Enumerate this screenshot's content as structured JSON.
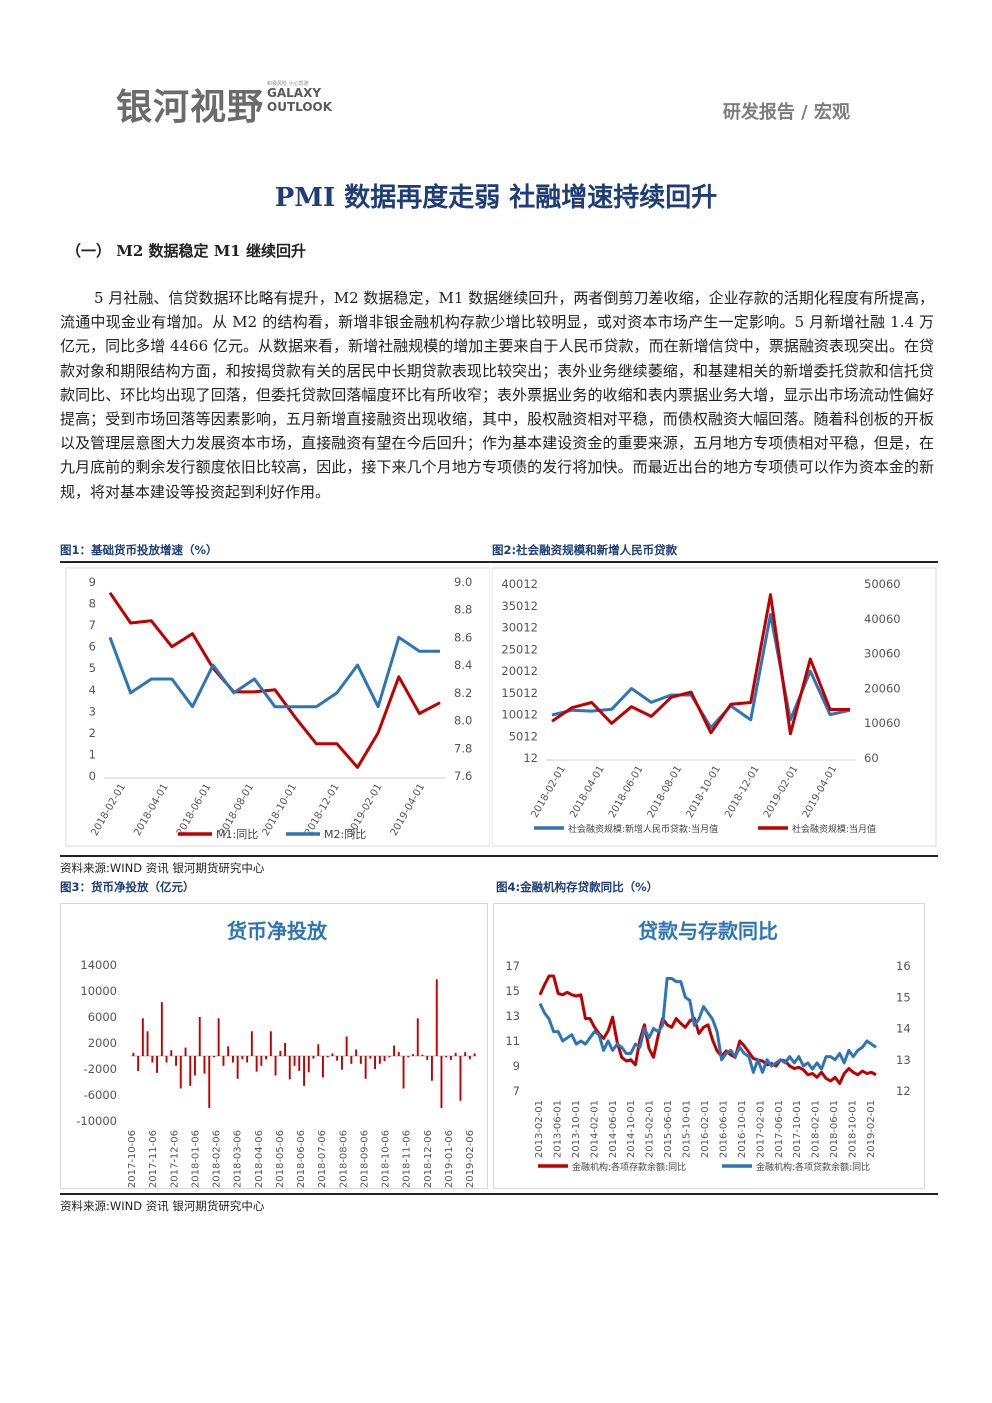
{
  "header": {
    "logo_cn": "银河视野",
    "logo_en_1": "GALAXY",
    "logo_en_2": "OUTLOOK",
    "logo_tag": "积极风险  小心驾驶",
    "category": "研发报告 / 宏观"
  },
  "title": "PMI 数据再度走弱 社融增速持续回升",
  "section_heading": "（一） M2 数据稳定 M1 继续回升",
  "paragraph": "5 月社融、信贷数据环比略有提升，M2 数据稳定，M1 数据继续回升，两者倒剪刀差收缩，企业存款的活期化程度有所提高，流通中现金业有增加。从 M2 的结构看，新增非银金融机构存款少增比较明显，或对资本市场产生一定影响。5 月新增社融 1.4 万亿元，同比多增 4466 亿元。从数据来看，新增社融规模的增加主要来自于人民币贷款，而在新增信贷中，票据融资表现突出。在贷款对象和期限结构方面，和按揭贷款有关的居民中长期贷款表现比较突出；表外业务继续萎缩，和基建相关的新增委托贷款和信托贷款同比、环比均出现了回落，但委托贷款回落幅度环比有所收窄；表外票据业务的收缩和表内票据业务大增，显示出市场流动性偏好提高；受到市场回落等因素影响，五月新增直接融资出现收缩，其中，股权融资相对平稳，而债权融资大幅回落。随着科创板的开板以及管理层意图大力发展资本市场，直接融资有望在今后回升；作为基本建设资金的重要来源，五月地方专项债相对平稳，但是，在九月底前的剩余发行额度依旧比较高，因此，接下来几个月地方专项债的发行将加快。而最近出台的地方专项债可以作为资本金的新规，将对基本建设等投资起到利好作用。",
  "fig1_caption": "图1：基础货币投放增速（%）",
  "fig2_caption": "图2:社会融资规模和新增人民币贷款",
  "fig3_caption": "图3：货币净投放（亿元）",
  "fig4_caption": "图4:金融机构存贷款同比（%）",
  "source1": "资料来源:WIND 资讯 银河期货研究中心",
  "source2": "资料来源:WIND 资讯 银河期货研究中心",
  "colors": {
    "red": "#c00000",
    "blue": "#2e75b6",
    "title_blue": "#1f3e78",
    "bar_red": "#c00000"
  },
  "chart_data": [
    {
      "type": "line",
      "title": "",
      "x": [
        "2018-01",
        "2018-02",
        "2018-03",
        "2018-04",
        "2018-05",
        "2018-06",
        "2018-07",
        "2018-08",
        "2018-09",
        "2018-10",
        "2018-11",
        "2018-12",
        "2019-01",
        "2019-02",
        "2019-03",
        "2019-04",
        "2019-05"
      ],
      "x_tick_labels": [
        "2018-02-01",
        "2018-04-01",
        "2018-06-01",
        "2018-08-01",
        "2018-10-01",
        "2018-12-01",
        "2019-02-01",
        "2019-04-01"
      ],
      "series": [
        {
          "name": "M1:同比",
          "axis": "left",
          "color": "#c00000",
          "values": [
            8.5,
            7.1,
            7.2,
            6.0,
            6.6,
            5.0,
            3.9,
            3.9,
            4.0,
            2.7,
            1.5,
            1.5,
            0.4,
            2.0,
            4.6,
            2.9,
            3.4
          ]
        },
        {
          "name": "M2:同比",
          "axis": "right",
          "color": "#2e75b6",
          "values": [
            8.6,
            8.2,
            8.3,
            8.3,
            8.1,
            8.4,
            8.2,
            8.3,
            8.1,
            8.1,
            8.1,
            8.2,
            8.4,
            8.1,
            8.6,
            8.5,
            8.5
          ]
        }
      ],
      "y_left": {
        "ticks": [
          "0",
          "1",
          "2",
          "3",
          "4",
          "5",
          "6",
          "7",
          "8",
          "9"
        ],
        "range": [
          0,
          9
        ]
      },
      "y_right": {
        "ticks": [
          "7.6",
          "7.8",
          "8.0",
          "8.2",
          "8.4",
          "8.6",
          "8.8",
          "9.0"
        ],
        "range": [
          7.6,
          9.0
        ]
      },
      "legend": "bottom"
    },
    {
      "type": "line",
      "title": "",
      "x_tick_labels": [
        "2018-02-01",
        "2018-04-01",
        "2018-06-01",
        "2018-08-01",
        "2018-10-01",
        "2018-12-01",
        "2019-02-01",
        "2019-04-01"
      ],
      "series": [
        {
          "name": "社会融资规模:新增人民币贷款:当月值",
          "axis": "left",
          "color": "#2e75b6",
          "values": [
            9900,
            11000,
            10800,
            11200,
            16000,
            12800,
            14500,
            14500,
            7000,
            12000,
            8800,
            33000,
            8800,
            20000,
            10000,
            11000
          ]
        },
        {
          "name": "社会融资规模:当月值",
          "axis": "right",
          "color": "#c00000",
          "values": [
            10600,
            14500,
            16000,
            10000,
            14800,
            12000,
            17500,
            19000,
            7300,
            15500,
            16000,
            47000,
            7000,
            28500,
            14000,
            14000
          ]
        }
      ],
      "y_left": {
        "ticks": [
          "12",
          "5012",
          "10012",
          "15012",
          "20012",
          "25012",
          "30012",
          "35012",
          "40012"
        ],
        "range": [
          12,
          40012
        ]
      },
      "y_right": {
        "ticks": [
          "60",
          "10060",
          "20060",
          "30060",
          "40060",
          "50060"
        ],
        "range": [
          60,
          50060
        ]
      },
      "legend": "bottom"
    },
    {
      "type": "bar",
      "title": "货币净投放",
      "x_tick_labels": [
        "2017-10-06",
        "2017-11-06",
        "2017-12-06",
        "2018-01-06",
        "2018-02-06",
        "2018-03-06",
        "2018-04-06",
        "2018-05-06",
        "2018-06-06",
        "2018-07-06",
        "2018-08-06",
        "2018-09-06",
        "2018-10-06",
        "2018-11-06",
        "2018-12-06",
        "2019-01-06",
        "2019-02-06"
      ],
      "values": [
        500,
        -2300,
        5800,
        3800,
        -1000,
        -2600,
        8300,
        -1000,
        900,
        -1500,
        -5000,
        1300,
        -4600,
        -3000,
        6000,
        -2700,
        -8000,
        -200,
        5800,
        -1500,
        1500,
        -1000,
        -3500,
        -500,
        -1000,
        3800,
        -2400,
        -1500,
        -500,
        3800,
        -3000,
        800,
        2000,
        -3600,
        -1500,
        -2300,
        -4600,
        -2500,
        -400,
        1800,
        -3300,
        -200,
        400,
        -700,
        -2100,
        3000,
        -1200,
        1000,
        -1200,
        -3500,
        -400,
        -2000,
        -1200,
        -800,
        -200,
        1600,
        600,
        -5000,
        -200,
        300,
        5800,
        200,
        -600,
        -3800,
        11800,
        -8000,
        -200,
        -600,
        500,
        -6900,
        600,
        -500,
        400
      ],
      "y_ticks": [
        "-10000",
        "-6000",
        "-2000",
        "2000",
        "6000",
        "10000",
        "14000"
      ],
      "y_range": [
        -10000,
        14000
      ]
    },
    {
      "type": "line",
      "title": "贷款与存款同比",
      "x_tick_labels": [
        "2013-02-01",
        "2013-06-01",
        "2013-10-01",
        "2014-02-01",
        "2014-06-01",
        "2014-10-01",
        "2015-02-01",
        "2015-06-01",
        "2015-10-01",
        "2016-02-01",
        "2016-06-01",
        "2016-10-01",
        "2017-02-01",
        "2017-06-01",
        "2017-10-01",
        "2018-02-01",
        "2018-06-01",
        "2018-10-01",
        "2019-02-01"
      ],
      "series": [
        {
          "name": "金融机构:各项存款余额:同比",
          "axis": "left",
          "color": "#c00000",
          "values": [
            14.7,
            15.5,
            16.2,
            16.2,
            14.8,
            14.7,
            14.9,
            14.7,
            14.6,
            14.7,
            12.8,
            12.8,
            12.1,
            11.6,
            11.2,
            11.8,
            12.9,
            10.9,
            9.7,
            9.4,
            9.5,
            9.1,
            11.1,
            12.3,
            10.4,
            9.7,
            11.4,
            12.8,
            12.3,
            12.1,
            12.8,
            12.4,
            12.1,
            12.6,
            12.8,
            11.6,
            12.1,
            12.3,
            11.1,
            10.2,
            9.8,
            10.2,
            9.9,
            9.7,
            11.0,
            10.6,
            10.1,
            9.6,
            9.5,
            9.4,
            9.1,
            9.2,
            9.0,
            9.5,
            9.4,
            9.0,
            8.8,
            8.9,
            8.7,
            8.3,
            8.4,
            8.1,
            8.5,
            8.0,
            7.8,
            8.1,
            7.6,
            8.4,
            8.8,
            8.5,
            8.3,
            8.6,
            8.4,
            8.5,
            8.3
          ]
        },
        {
          "name": "金融机构:各项贷款余额:同比",
          "axis": "right",
          "color": "#2e75b6",
          "values": [
            14.8,
            14.5,
            14.3,
            13.9,
            13.9,
            13.6,
            13.7,
            13.8,
            13.5,
            13.6,
            13.5,
            13.7,
            13.9,
            13.8,
            13.3,
            13.6,
            13.3,
            13.5,
            13.4,
            13.2,
            13.2,
            13.5,
            13.4,
            14.0,
            13.7,
            14.0,
            13.9,
            14.1,
            15.6,
            15.6,
            15.5,
            15.5,
            15.0,
            14.9,
            14.1,
            14.3,
            14.7,
            14.5,
            14.3,
            13.9,
            13.0,
            13.2,
            13.3,
            13.1,
            13.4,
            13.2,
            13.1,
            12.6,
            13.0,
            12.6,
            13.0,
            12.8,
            12.9,
            13.0,
            12.9,
            13.1,
            12.9,
            13.1,
            12.8,
            12.9,
            12.7,
            12.9,
            12.7,
            13.1,
            13.1,
            13.0,
            13.2,
            12.9,
            13.3,
            13.1,
            13.3,
            13.4,
            13.6,
            13.5,
            13.4
          ]
        }
      ],
      "y_left": {
        "ticks": [
          "7",
          "9",
          "11",
          "13",
          "15",
          "17"
        ],
        "range": [
          7,
          17
        ]
      },
      "y_right": {
        "ticks": [
          "12",
          "13",
          "14",
          "15",
          "16"
        ],
        "range": [
          12,
          16
        ]
      },
      "legend": "bottom"
    }
  ]
}
